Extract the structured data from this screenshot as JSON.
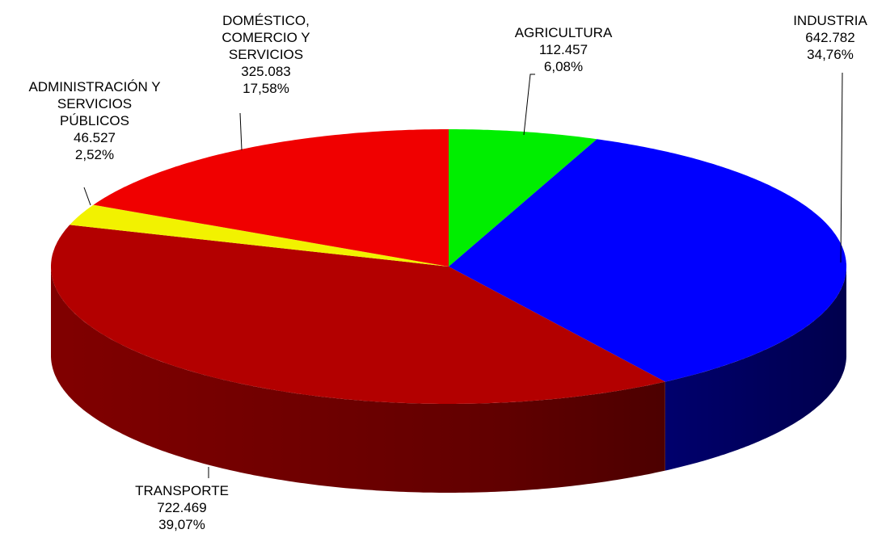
{
  "chart_data": {
    "type": "pie",
    "categories": [
      "AGRICULTURA",
      "INDUSTRIA",
      "TRANSPORTE",
      "ADMINISTRACIÓN Y\nSERVICIOS\nPÚBLICOS",
      "DOMÉSTICO,\nCOMERCIO Y\nSERVICIOS"
    ],
    "values": [
      112457,
      642782,
      722469,
      46527,
      325083
    ],
    "value_labels": [
      "112.457",
      "642.782",
      "722.469",
      "46.527",
      "325.083"
    ],
    "percentages": [
      6.08,
      34.76,
      39.07,
      2.52,
      17.58
    ],
    "percentage_labels": [
      "6,08%",
      "34,76%",
      "39,07%",
      "2,52%",
      "17,58%"
    ],
    "colors": [
      "#00ee00",
      "#0000ff",
      "#b30000",
      "#f2f200",
      "#f00000"
    ]
  }
}
